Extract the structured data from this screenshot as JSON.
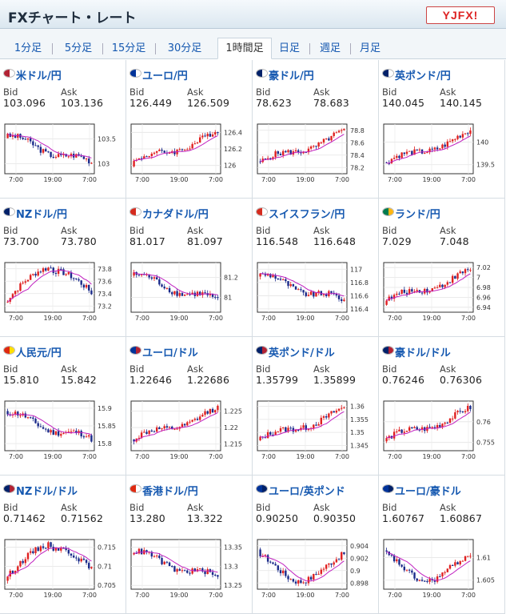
{
  "header": {
    "title": "FXチャート・レート",
    "logo": "YJFX!"
  },
  "tabs": [
    "1分足",
    "5分足",
    "15分足",
    "30分足",
    "1時間足",
    "日足",
    "週足",
    "月足"
  ],
  "active_tab": "1時間足",
  "labels": {
    "bid": "Bid",
    "ask": "Ask"
  },
  "colors": {
    "up": "#e02020",
    "down": "#1a2a8a",
    "ma": "#c020c0",
    "link": "#1558b0"
  },
  "pairs": [
    {
      "name": "米ドル/円",
      "bid": "103.096",
      "ask": "103.136",
      "flag": [
        "#b22234",
        "#ffffff"
      ],
      "y_ticks": [
        "103.5",
        "103"
      ],
      "x_ticks": [
        "7:00",
        "19:00",
        "7:00"
      ],
      "range": [
        102.8,
        103.8
      ],
      "trend": "down"
    },
    {
      "name": "ユーロ/円",
      "bid": "126.449",
      "ask": "126.509",
      "flag": [
        "#003399",
        "#ffffff"
      ],
      "y_ticks": [
        "126.4",
        "126.2",
        "126"
      ],
      "x_ticks": [
        "7:00",
        "19:00",
        "7:00"
      ],
      "range": [
        125.9,
        126.5
      ],
      "trend": "up"
    },
    {
      "name": "豪ドル/円",
      "bid": "78.623",
      "ask": "78.683",
      "flag": [
        "#012169",
        "#ffffff"
      ],
      "y_ticks": [
        "78.8",
        "78.6",
        "78.4",
        "78.2"
      ],
      "x_ticks": [
        "7:00",
        "19:00",
        "7:00"
      ],
      "range": [
        78.1,
        78.9
      ],
      "trend": "up"
    },
    {
      "name": "英ポンド/円",
      "bid": "140.045",
      "ask": "140.145",
      "flag": [
        "#012169",
        "#ffffff"
      ],
      "y_ticks": [
        "140",
        "139.5"
      ],
      "x_ticks": [
        "7:00",
        "19:00",
        "7:00"
      ],
      "range": [
        139.3,
        140.4
      ],
      "trend": "up"
    },
    {
      "name": "NZドル/円",
      "bid": "73.700",
      "ask": "73.780",
      "flag": [
        "#012169",
        "#ffffff"
      ],
      "y_ticks": [
        "73.8",
        "73.6",
        "73.4",
        "73.2"
      ],
      "x_ticks": [
        "7:00",
        "19:00",
        "7:00"
      ],
      "range": [
        73.1,
        73.9
      ],
      "trend": "upmid"
    },
    {
      "name": "カナダドル/円",
      "bid": "81.017",
      "ask": "81.097",
      "flag": [
        "#d52b1e",
        "#ffffff"
      ],
      "y_ticks": [
        "81.2",
        "81"
      ],
      "x_ticks": [
        "7:00",
        "19:00",
        "7:00"
      ],
      "range": [
        80.85,
        81.35
      ],
      "trend": "down"
    },
    {
      "name": "スイスフラン/円",
      "bid": "116.548",
      "ask": "116.648",
      "flag": [
        "#d52b1e",
        "#ffffff"
      ],
      "y_ticks": [
        "117",
        "116.8",
        "116.6",
        "116.4"
      ],
      "x_ticks": [
        "7:00",
        "19:00",
        "7:00"
      ],
      "range": [
        116.35,
        117.1
      ],
      "trend": "down"
    },
    {
      "name": "ランド/円",
      "bid": "7.029",
      "ask": "7.048",
      "flag": [
        "#007a4d",
        "#ffb612"
      ],
      "y_ticks": [
        "7.02",
        "7",
        "6.98",
        "6.96",
        "6.94"
      ],
      "x_ticks": [
        "7:00",
        "19:00",
        "7:00"
      ],
      "range": [
        6.93,
        7.03
      ],
      "trend": "up"
    },
    {
      "name": "人民元/円",
      "bid": "15.810",
      "ask": "15.842",
      "flag": [
        "#de2910",
        "#ffde00"
      ],
      "y_ticks": [
        "15.9",
        "15.85",
        "15.8"
      ],
      "x_ticks": [
        "7:00",
        "19:00",
        "7:00"
      ],
      "range": [
        15.78,
        15.92
      ],
      "trend": "down"
    },
    {
      "name": "ユーロ/ドル",
      "bid": "1.22646",
      "ask": "1.22686",
      "flag": [
        "#003399",
        "#b22234"
      ],
      "y_ticks": [
        "1.225",
        "1.22",
        "1.215"
      ],
      "x_ticks": [
        "7:00",
        "19:00",
        "7:00"
      ],
      "range": [
        1.213,
        1.228
      ],
      "trend": "up"
    },
    {
      "name": "英ポンド/ドル",
      "bid": "1.35799",
      "ask": "1.35899",
      "flag": [
        "#012169",
        "#b22234"
      ],
      "y_ticks": [
        "1.36",
        "1.355",
        "1.35",
        "1.345"
      ],
      "x_ticks": [
        "7:00",
        "19:00",
        "7:00"
      ],
      "range": [
        1.343,
        1.362
      ],
      "trend": "up"
    },
    {
      "name": "豪ドル/ドル",
      "bid": "0.76246",
      "ask": "0.76306",
      "flag": [
        "#012169",
        "#b22234"
      ],
      "y_ticks": [
        "0.76",
        "0.755"
      ],
      "x_ticks": [
        "7:00",
        "19:00",
        "7:00"
      ],
      "range": [
        0.753,
        0.765
      ],
      "trend": "up"
    },
    {
      "name": "NZドル/ドル",
      "bid": "0.71462",
      "ask": "0.71562",
      "flag": [
        "#012169",
        "#b22234"
      ],
      "y_ticks": [
        "0.715",
        "0.71",
        "0.705"
      ],
      "x_ticks": [
        "7:00",
        "19:00",
        "7:00"
      ],
      "range": [
        0.704,
        0.717
      ],
      "trend": "upmid"
    },
    {
      "name": "香港ドル/円",
      "bid": "13.280",
      "ask": "13.322",
      "flag": [
        "#de2910",
        "#ffffff"
      ],
      "y_ticks": [
        "13.35",
        "13.3",
        "13.25"
      ],
      "x_ticks": [
        "7:00",
        "19:00",
        "7:00"
      ],
      "range": [
        13.24,
        13.37
      ],
      "trend": "down"
    },
    {
      "name": "ユーロ/英ポンド",
      "bid": "0.90250",
      "ask": "0.90350",
      "flag": [
        "#003399",
        "#012169"
      ],
      "y_ticks": [
        "0.904",
        "0.902",
        "0.9",
        "0.898"
      ],
      "x_ticks": [
        "7:00",
        "19:00",
        "7:00"
      ],
      "range": [
        0.897,
        0.905
      ],
      "trend": "vdip"
    },
    {
      "name": "ユーロ/豪ドル",
      "bid": "1.60767",
      "ask": "1.60867",
      "flag": [
        "#003399",
        "#012169"
      ],
      "y_ticks": [
        "1.61",
        "1.605"
      ],
      "x_ticks": [
        "7:00",
        "19:00",
        "7:00"
      ],
      "range": [
        1.603,
        1.614
      ],
      "trend": "vdip"
    }
  ]
}
